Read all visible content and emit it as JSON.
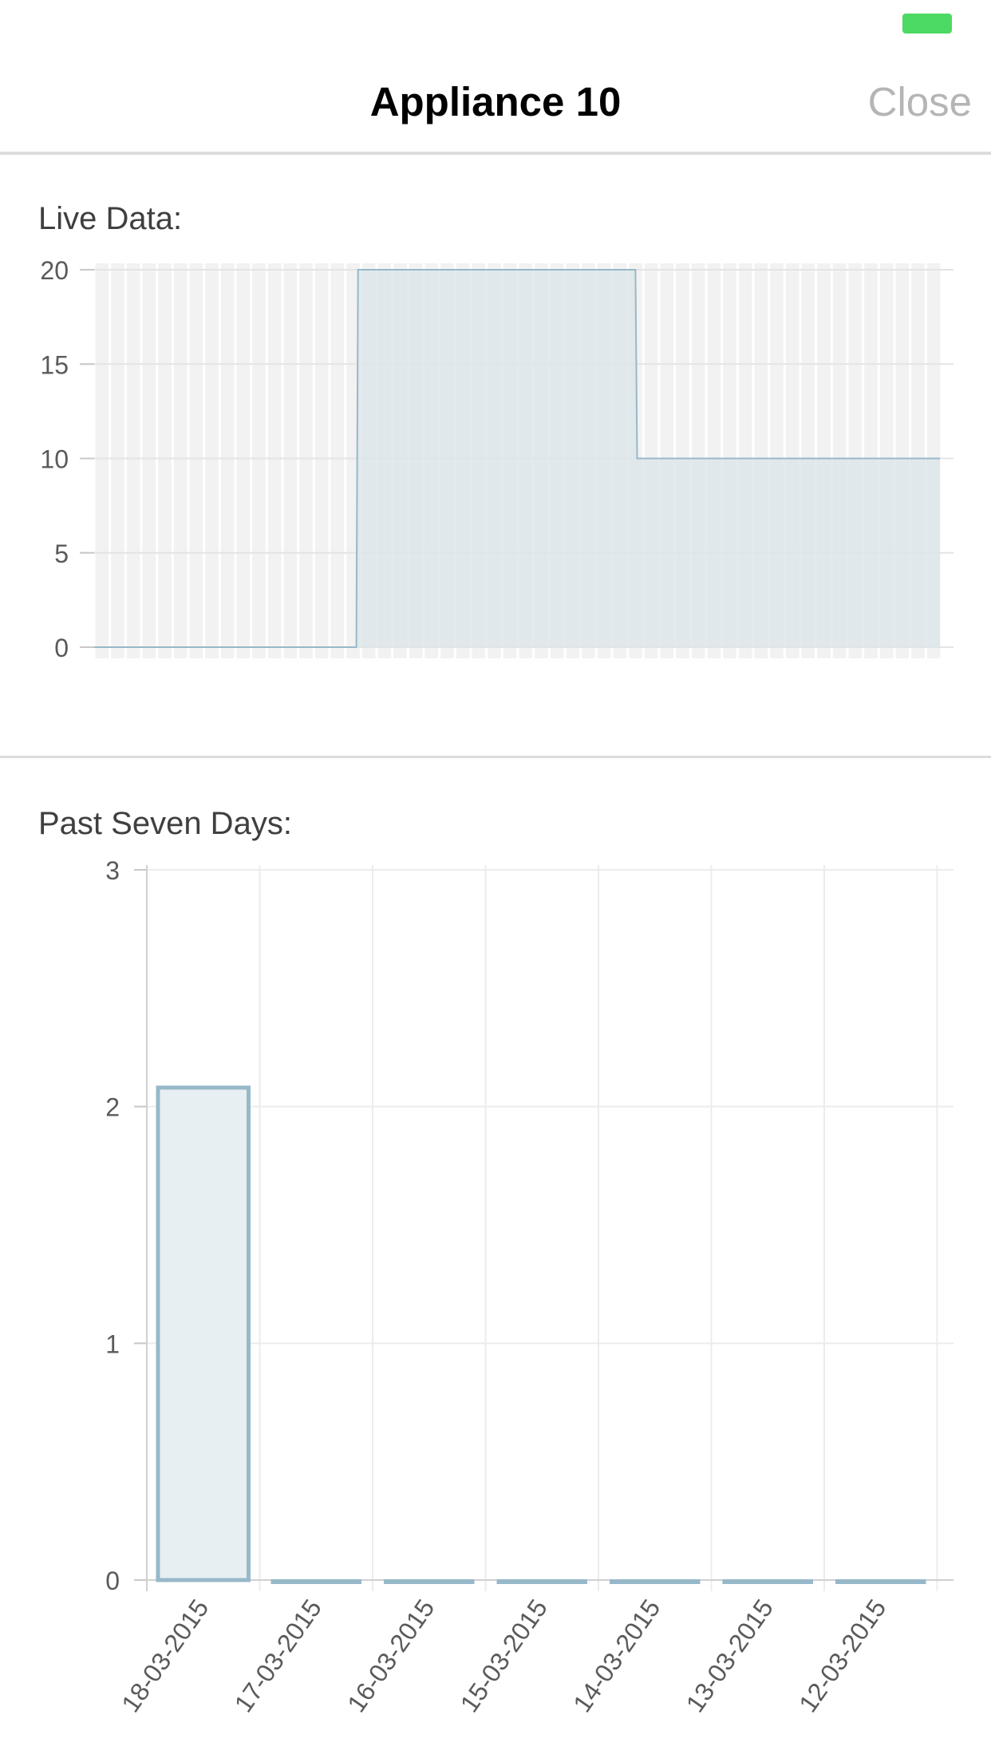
{
  "status_bar": {
    "battery_color": "#4cd964"
  },
  "header": {
    "title": "Appliance 10",
    "close_label": "Close"
  },
  "live_section": {
    "label": "Live Data:"
  },
  "week_section": {
    "label": "Past Seven Days:"
  },
  "colors": {
    "accent": "#4cd964",
    "series_stroke": "#97b8c9",
    "live_fill": "#dde6ea",
    "bar_fill": "#e7eff2",
    "close_text": "#b5b5b5"
  },
  "chart_data": [
    {
      "type": "area",
      "title": "Live Data:",
      "ylim": [
        0,
        20
      ],
      "y_ticks": [
        "0",
        "5",
        "10",
        "15",
        "20"
      ],
      "grid": true,
      "series": [
        {
          "x": [
            0,
            31,
            31.2,
            64,
            64.2,
            100
          ],
          "values": [
            0,
            0,
            20,
            20,
            10,
            10
          ]
        }
      ]
    },
    {
      "type": "bar",
      "title": "Past Seven Days:",
      "categories": [
        "18-03-2015",
        "17-03-2015",
        "16-03-2015",
        "15-03-2015",
        "14-03-2015",
        "13-03-2015",
        "12-03-2015"
      ],
      "values": [
        2.08,
        0,
        0,
        0,
        0,
        0,
        0
      ],
      "ylim": [
        0,
        3
      ],
      "y_ticks": [
        "0",
        "1",
        "2",
        "3"
      ],
      "grid": true
    }
  ]
}
